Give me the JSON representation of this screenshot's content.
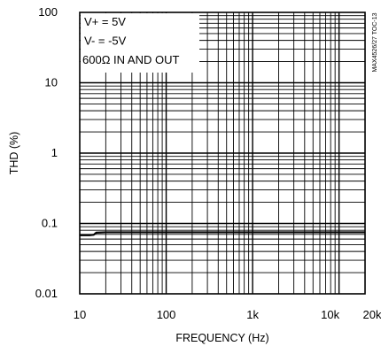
{
  "chart_data": {
    "type": "line",
    "title": "",
    "xlabel": "FREQUENCY (Hz)",
    "ylabel": "THD (%)",
    "xscale": "log",
    "yscale": "log",
    "xlim": [
      10,
      20000
    ],
    "ylim": [
      0.01,
      100
    ],
    "x_tick_labels": [
      "10",
      "100",
      "1k",
      "10k",
      "20k"
    ],
    "x_tick_values": [
      10,
      100,
      1000,
      10000,
      20000
    ],
    "y_tick_labels": [
      "0.01",
      "0.1",
      "1",
      "10",
      "100"
    ],
    "y_tick_values": [
      0.01,
      0.1,
      1,
      10,
      100
    ],
    "grid": true,
    "legend_placement": "top-left",
    "annotations": [
      "V+ = 5V",
      "V- = -5V",
      "600Ω IN AND OUT"
    ],
    "side_note": "MAX4526/27 TOC-13",
    "series": [
      {
        "x": [
          10,
          13,
          14.5,
          15.5,
          20,
          100,
          1000,
          10000,
          20000
        ],
        "y": [
          0.068,
          0.068,
          0.069,
          0.074,
          0.075,
          0.075,
          0.075,
          0.075,
          0.075
        ]
      }
    ]
  }
}
